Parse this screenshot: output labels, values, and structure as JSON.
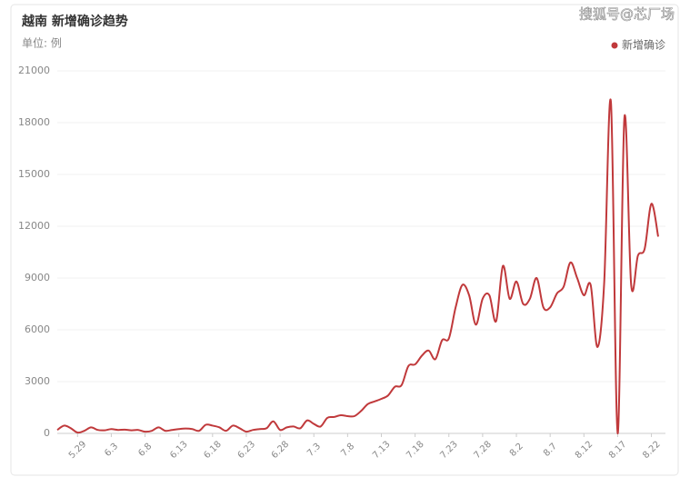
{
  "chart_data": {
    "type": "line",
    "title": "越南 新增确诊趋势",
    "subtitle": "单位: 例",
    "watermark": "搜狐号@芯厂场",
    "categories": [
      null,
      null,
      null,
      "5.29",
      null,
      null,
      null,
      null,
      "6.3",
      null,
      null,
      null,
      null,
      "6.8",
      null,
      null,
      null,
      null,
      "6.13",
      null,
      null,
      null,
      null,
      "6.18",
      null,
      null,
      null,
      null,
      "6.23",
      null,
      null,
      null,
      null,
      "6.28",
      null,
      null,
      null,
      null,
      "7.3",
      null,
      null,
      null,
      null,
      "7.8",
      null,
      null,
      null,
      null,
      "7.13",
      null,
      null,
      null,
      null,
      "7.18",
      null,
      null,
      null,
      null,
      "7.23",
      null,
      null,
      null,
      null,
      "7.28",
      null,
      null,
      null,
      null,
      "8.2",
      null,
      null,
      null,
      null,
      "8.7",
      null,
      null,
      null,
      null,
      "8.12",
      null,
      null,
      null,
      null,
      "8.17",
      null,
      null,
      null,
      null,
      "8.22",
      null
    ],
    "series": [
      {
        "name": "新增确诊",
        "color": "#c0393b",
        "values": [
          200,
          450,
          300,
          50,
          150,
          350,
          200,
          180,
          250,
          200,
          220,
          180,
          200,
          100,
          150,
          350,
          150,
          200,
          250,
          280,
          250,
          150,
          500,
          450,
          350,
          150,
          450,
          300,
          100,
          200,
          250,
          300,
          700,
          200,
          350,
          400,
          300,
          750,
          550,
          400,
          900,
          950,
          1050,
          1000,
          1000,
          1300,
          1700,
          1850,
          2000,
          2200,
          2700,
          2800,
          3900,
          4000,
          4500,
          4800,
          4300,
          5400,
          5500,
          7300,
          8600,
          8000,
          6300,
          7800,
          8000,
          6500,
          9700,
          7800,
          8800,
          7500,
          7800,
          9000,
          7300,
          7300,
          8100,
          8500,
          9900,
          9000,
          8000,
          8600,
          5000,
          8700,
          19200,
          0,
          18300,
          8600,
          10300,
          10700,
          13300,
          11400
        ]
      }
    ],
    "ylim": [
      0,
      21000
    ],
    "yticks": [
      0,
      3000,
      6000,
      9000,
      12000,
      15000,
      18000,
      21000
    ],
    "grid": true,
    "legend": "top-right"
  }
}
